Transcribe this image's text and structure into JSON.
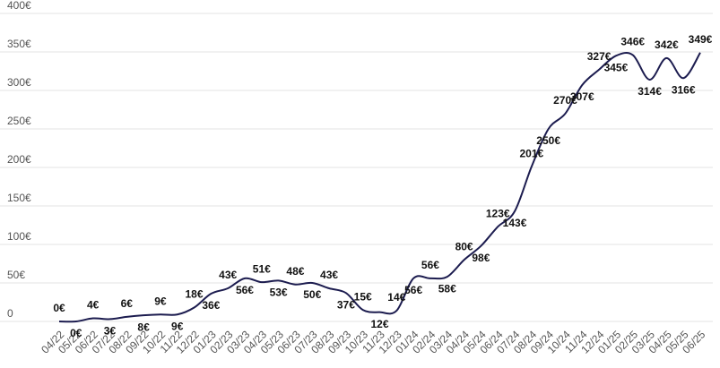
{
  "chart_data": {
    "type": "line",
    "categories": [
      "04/22",
      "05/22",
      "06/22",
      "07/22",
      "08/22",
      "09/22",
      "10/22",
      "11/22",
      "12/22",
      "01/23",
      "02/23",
      "03/23",
      "04/23",
      "05/23",
      "06/23",
      "07/23",
      "08/23",
      "09/23",
      "10/23",
      "11/23",
      "12/23",
      "01/24",
      "02/24",
      "03/24",
      "04/24",
      "05/24",
      "06/24",
      "07/24",
      "08/24",
      "09/24",
      "10/24",
      "11/24",
      "12/24",
      "01/25",
      "02/25",
      "03/25",
      "04/25",
      "05/25",
      "06/25"
    ],
    "series": [
      {
        "color": "#1c1c4f",
        "values": [
          0,
          0,
          4,
          3,
          6,
          8,
          9,
          9,
          18,
          36,
          43,
          56,
          51,
          53,
          48,
          50,
          43,
          37,
          15,
          12,
          14,
          56,
          56,
          58,
          80,
          98,
          123,
          143,
          201,
          250,
          270,
          307,
          327,
          345,
          346,
          314,
          342,
          316,
          349
        ],
        "value_labels": [
          "0€",
          "0€",
          "4€",
          "3€",
          "6€",
          "8€",
          "9€",
          "9€",
          "18€",
          "36€",
          "43€",
          "56€",
          "51€",
          "53€",
          "48€",
          "50€",
          "43€",
          "37€",
          "15€",
          "12€",
          "14€",
          "56€",
          "56€",
          "58€",
          "80€",
          "98€",
          "123€",
          "143€",
          "201€",
          "250€",
          "270€",
          "307€",
          "327€",
          "345€",
          "346€",
          "314€",
          "342€",
          "316€",
          "349€"
        ]
      }
    ],
    "ylim": [
      0,
      400
    ],
    "yticks": [
      0,
      {
        "value": 50,
        "label": "50€"
      },
      {
        "value": 100,
        "label": "100€"
      },
      {
        "value": 150,
        "label": "150€"
      },
      {
        "value": 200,
        "label": "200€"
      },
      {
        "value": 250,
        "label": "250€"
      },
      {
        "value": 300,
        "label": "300€"
      },
      {
        "value": 350,
        "label": "350€"
      },
      {
        "value": 400,
        "label": "400€"
      }
    ],
    "grid": true
  }
}
